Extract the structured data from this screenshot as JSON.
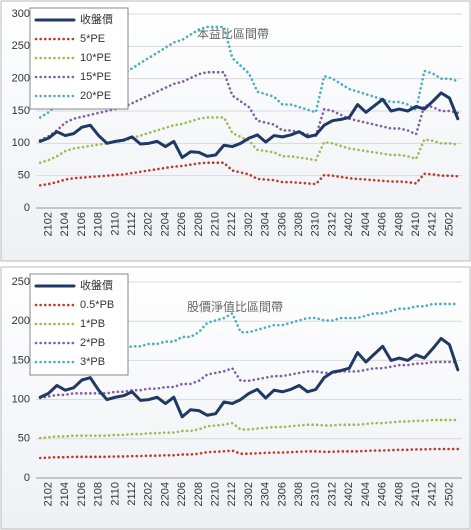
{
  "chart_data": [
    {
      "type": "line",
      "title": "本益比區間帶",
      "categories": [
        null,
        "2102",
        null,
        "2104",
        null,
        "2106",
        null,
        "2108",
        null,
        "2110",
        null,
        "2112",
        null,
        "2202",
        null,
        "2204",
        null,
        "2206",
        null,
        "2208",
        null,
        "2210",
        null,
        "2212",
        null,
        "2302",
        null,
        "2304",
        null,
        "2306",
        null,
        "2308",
        null,
        "2310",
        null,
        "2312",
        null,
        "2402",
        null,
        "2404",
        null,
        "2406",
        null,
        "2408",
        null,
        "2410",
        null,
        "2412",
        null,
        "2502",
        null
      ],
      "ylim": [
        0,
        300
      ],
      "yticks": [
        0,
        50,
        100,
        150,
        200,
        250,
        300
      ],
      "grid": true,
      "legend": "upper left",
      "series": [
        {
          "name": "收盤價",
          "color": "#1f3864",
          "style": "solid",
          "values": [
            103,
            108,
            118,
            112,
            115,
            125,
            128,
            112,
            100,
            103,
            105,
            110,
            99,
            100,
            103,
            95,
            103,
            78,
            87,
            86,
            80,
            82,
            97,
            95,
            100,
            108,
            113,
            102,
            112,
            110,
            113,
            118,
            110,
            113,
            128,
            135,
            137,
            140,
            160,
            148,
            158,
            168,
            150,
            153,
            150,
            157,
            153,
            165,
            178,
            170,
            138
          ]
        },
        {
          "name": "5*PE",
          "color": "#c0392b",
          "style": "dotted",
          "values": [
            35,
            37,
            40,
            44,
            46,
            47,
            48,
            49,
            50,
            51,
            52,
            54,
            56,
            58,
            60,
            62,
            64,
            65,
            67,
            69,
            70,
            70,
            70,
            58,
            55,
            52,
            45,
            44,
            43,
            40,
            40,
            39,
            38,
            37,
            51,
            50,
            48,
            46,
            45,
            44,
            43,
            42,
            41,
            41,
            40,
            38,
            53,
            52,
            50,
            50,
            49
          ]
        },
        {
          "name": "10*PE",
          "color": "#9bbb59",
          "style": "dotted",
          "values": [
            70,
            74,
            80,
            88,
            92,
            94,
            96,
            98,
            100,
            102,
            104,
            108,
            112,
            116,
            120,
            124,
            128,
            130,
            134,
            138,
            140,
            140,
            140,
            116,
            110,
            104,
            90,
            88,
            86,
            80,
            80,
            78,
            76,
            74,
            102,
            100,
            96,
            92,
            90,
            88,
            86,
            84,
            82,
            82,
            80,
            76,
            106,
            104,
            100,
            100,
            98
          ]
        },
        {
          "name": "15*PE",
          "color": "#7f5fa8",
          "style": "dotted",
          "values": [
            105,
            111,
            120,
            132,
            138,
            141,
            144,
            147,
            150,
            153,
            156,
            162,
            168,
            174,
            180,
            186,
            192,
            195,
            201,
            207,
            210,
            210,
            210,
            174,
            165,
            156,
            135,
            132,
            129,
            120,
            120,
            117,
            114,
            111,
            153,
            150,
            144,
            138,
            135,
            132,
            129,
            126,
            123,
            123,
            120,
            114,
            159,
            156,
            150,
            150,
            147
          ]
        },
        {
          "name": "20*PE",
          "color": "#4bacc6",
          "style": "dotted",
          "values": [
            140,
            148,
            160,
            176,
            184,
            188,
            192,
            196,
            200,
            204,
            208,
            216,
            224,
            232,
            240,
            248,
            256,
            260,
            268,
            276,
            280,
            280,
            280,
            232,
            220,
            208,
            180,
            176,
            172,
            160,
            160,
            156,
            152,
            148,
            204,
            200,
            192,
            184,
            180,
            176,
            172,
            168,
            164,
            164,
            160,
            152,
            212,
            208,
            200,
            200,
            196
          ]
        }
      ]
    },
    {
      "type": "line",
      "title": "股價淨值比區間帶",
      "categories": [
        null,
        "2102",
        null,
        "2104",
        null,
        "2106",
        null,
        "2108",
        null,
        "2110",
        null,
        "2112",
        null,
        "2202",
        null,
        "2204",
        null,
        "2206",
        null,
        "2208",
        null,
        "2210",
        null,
        "2212",
        null,
        "2302",
        null,
        "2304",
        null,
        "2306",
        null,
        "2308",
        null,
        "2310",
        null,
        "2312",
        null,
        "2402",
        null,
        "2404",
        null,
        "2406",
        null,
        "2408",
        null,
        "2410",
        null,
        "2412",
        null,
        "2502",
        null
      ],
      "ylim": [
        0,
        250
      ],
      "yticks": [
        0,
        50,
        100,
        150,
        200,
        250
      ],
      "grid": true,
      "legend": "upper left",
      "series": [
        {
          "name": "收盤價",
          "color": "#1f3864",
          "style": "solid",
          "values": [
            103,
            108,
            118,
            112,
            115,
            125,
            128,
            112,
            100,
            103,
            105,
            110,
            99,
            100,
            103,
            95,
            103,
            78,
            87,
            86,
            80,
            82,
            97,
            95,
            100,
            108,
            113,
            102,
            112,
            110,
            113,
            118,
            110,
            113,
            128,
            135,
            137,
            140,
            160,
            148,
            158,
            168,
            150,
            153,
            150,
            157,
            153,
            165,
            178,
            170,
            138
          ]
        },
        {
          "name": "0.5*PB",
          "color": "#c0392b",
          "style": "dotted",
          "values": [
            25.5,
            26,
            26.5,
            26.5,
            27,
            27,
            27,
            27,
            27,
            27.5,
            27.5,
            28,
            28,
            28.5,
            28.5,
            29,
            29,
            30,
            30,
            31,
            33,
            33.5,
            34,
            35,
            31,
            31,
            31.5,
            32,
            32.5,
            32.5,
            33,
            33.5,
            34,
            34,
            33.5,
            33.5,
            34,
            34,
            34,
            34.5,
            35,
            35,
            35.5,
            36,
            36,
            36.5,
            36.5,
            37,
            37,
            37,
            37
          ]
        },
        {
          "name": "1*PB",
          "color": "#9bbb59",
          "style": "dotted",
          "values": [
            51,
            52,
            53,
            53,
            54,
            54,
            54,
            54,
            54,
            55,
            55,
            56,
            56,
            57,
            57,
            58,
            58,
            60,
            60,
            62,
            66,
            67,
            68,
            70,
            62,
            62,
            63,
            64,
            65,
            65,
            66,
            67,
            68,
            68,
            67,
            67,
            68,
            68,
            68,
            69,
            70,
            70,
            71,
            72,
            72,
            73,
            73,
            74,
            74,
            74,
            74
          ]
        },
        {
          "name": "2*PB",
          "color": "#7f5fa8",
          "style": "dotted",
          "values": [
            102,
            104,
            106,
            106,
            108,
            108,
            108,
            108,
            108,
            110,
            110,
            112,
            112,
            114,
            114,
            116,
            116,
            120,
            120,
            124,
            132,
            134,
            136,
            140,
            124,
            124,
            126,
            128,
            130,
            130,
            132,
            134,
            136,
            136,
            134,
            134,
            136,
            136,
            136,
            138,
            140,
            140,
            142,
            144,
            144,
            146,
            146,
            148,
            148,
            148,
            148
          ]
        },
        {
          "name": "3*PB",
          "color": "#4bacc6",
          "style": "dotted",
          "values": [
            153,
            156,
            159,
            159,
            162,
            162,
            162,
            162,
            162,
            165,
            165,
            168,
            168,
            171,
            171,
            174,
            174,
            180,
            180,
            186,
            198,
            201,
            204,
            210,
            186,
            186,
            189,
            192,
            195,
            195,
            198,
            201,
            204,
            204,
            201,
            201,
            204,
            204,
            204,
            207,
            210,
            210,
            213,
            216,
            216,
            219,
            219,
            222,
            222,
            222,
            222
          ]
        }
      ]
    }
  ]
}
